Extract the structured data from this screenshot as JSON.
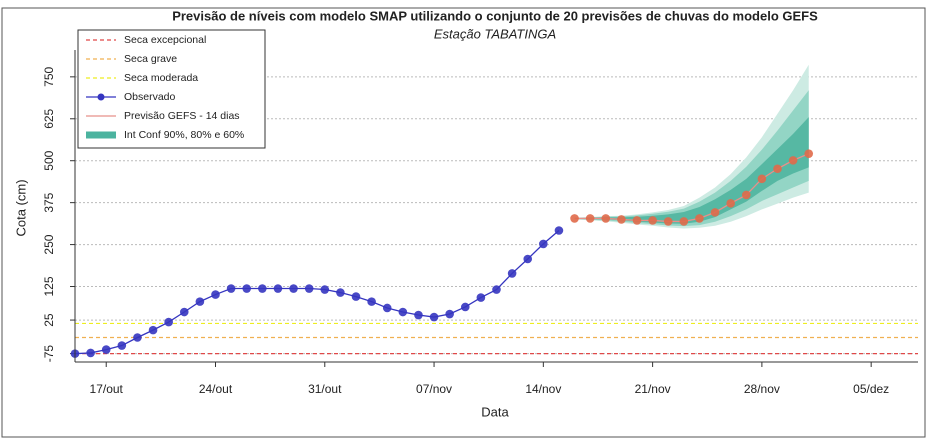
{
  "chart_data": {
    "type": "line",
    "title": "Previsão de níveis com modelo SMAP utilizando o conjunto de 20 previsões de chuvas do modelo GEFS",
    "subtitle": "Estação TABATINGA",
    "x_label": "Data",
    "y_label": "Cota (cm)",
    "categories": [
      null,
      null,
      "17/out",
      null,
      null,
      null,
      null,
      null,
      null,
      "24/out",
      null,
      null,
      null,
      null,
      null,
      null,
      "31/out",
      null,
      null,
      null,
      null,
      null,
      null,
      "07/nov",
      null,
      null,
      null,
      null,
      null,
      null,
      "14/nov",
      null,
      null,
      null,
      null,
      null,
      null,
      "21/nov",
      null,
      null,
      null,
      null,
      null,
      null,
      "28/nov",
      null,
      null,
      null,
      null,
      null,
      null,
      "05/dez",
      null,
      null
    ],
    "ylim": [
      -100,
      830
    ],
    "yticks": [
      -75,
      25,
      125,
      250,
      375,
      500,
      625,
      750
    ],
    "grid": true,
    "legend": "upper left",
    "hlines": [
      {
        "name": "Seca excepcional",
        "value": -75,
        "color": "#e04848"
      },
      {
        "name": "Seca grave",
        "value": -27,
        "color": "#f0b050"
      },
      {
        "name": "Seca moderada",
        "value": 15,
        "color": "#eeee20"
      }
    ],
    "series": [
      {
        "name": "Observado",
        "color": "#3535c0",
        "marker_color": "#3535c0",
        "values": [
          -75,
          -73,
          -63,
          -51,
          -27,
          -5,
          19,
          49,
          80,
          101,
          119,
          119,
          119,
          119,
          119,
          119,
          116,
          107,
          95,
          80,
          61,
          49,
          40,
          34,
          43,
          64,
          92,
          116,
          164,
          207,
          252,
          292,
          null,
          null,
          null,
          null,
          null,
          null,
          null,
          null,
          null,
          null,
          null,
          null,
          null,
          null,
          null,
          null,
          null,
          null,
          null,
          null,
          null,
          null
        ]
      },
      {
        "name": "Previsão GEFS - 14 dias",
        "color": "#e8908a",
        "marker_color": "#e06a4a",
        "values": [
          null,
          null,
          null,
          null,
          null,
          null,
          null,
          null,
          null,
          null,
          null,
          null,
          null,
          null,
          null,
          null,
          null,
          null,
          null,
          null,
          null,
          null,
          null,
          null,
          null,
          null,
          null,
          null,
          null,
          null,
          null,
          null,
          328,
          328,
          328,
          325,
          322,
          322,
          319,
          319,
          328,
          346,
          373,
          398,
          446,
          476,
          501,
          521,
          null,
          null,
          null,
          null,
          null,
          null
        ]
      }
    ],
    "band": {
      "name": "Int Conf 90%, 80% e 60%",
      "color": "#4bb39f",
      "levels": [
        {
          "color": "#cdebe3",
          "upper": [
            null,
            null,
            null,
            null,
            null,
            null,
            null,
            null,
            null,
            null,
            null,
            null,
            null,
            null,
            null,
            null,
            null,
            null,
            null,
            null,
            null,
            null,
            null,
            null,
            null,
            null,
            null,
            null,
            null,
            null,
            null,
            null,
            330,
            332,
            335,
            336,
            340,
            346,
            353,
            365,
            390,
            420,
            460,
            510,
            570,
            640,
            710,
            786,
            null,
            null,
            null,
            null,
            null,
            null
          ],
          "lower": [
            null,
            null,
            null,
            null,
            null,
            null,
            null,
            null,
            null,
            null,
            null,
            null,
            null,
            null,
            null,
            null,
            null,
            null,
            null,
            null,
            null,
            null,
            null,
            null,
            null,
            null,
            null,
            null,
            null,
            null,
            null,
            null,
            325,
            322,
            319,
            315,
            310,
            306,
            301,
            298,
            300,
            306,
            318,
            335,
            355,
            372,
            390,
            405,
            null,
            null,
            null,
            null,
            null,
            null
          ]
        },
        {
          "color": "#93d5c5",
          "upper": [
            null,
            null,
            null,
            null,
            null,
            null,
            null,
            null,
            null,
            null,
            null,
            null,
            null,
            null,
            null,
            null,
            null,
            null,
            null,
            null,
            null,
            null,
            null,
            null,
            null,
            null,
            null,
            null,
            null,
            null,
            null,
            null,
            330,
            331,
            333,
            334,
            337,
            342,
            348,
            357,
            378,
            405,
            440,
            482,
            533,
            590,
            650,
            710,
            null,
            null,
            null,
            null,
            null,
            null
          ],
          "lower": [
            null,
            null,
            null,
            null,
            null,
            null,
            null,
            null,
            null,
            null,
            null,
            null,
            null,
            null,
            null,
            null,
            null,
            null,
            null,
            null,
            null,
            null,
            null,
            null,
            null,
            null,
            null,
            null,
            null,
            null,
            null,
            null,
            326,
            324,
            322,
            318,
            314,
            311,
            307,
            305,
            308,
            318,
            335,
            355,
            380,
            400,
            420,
            440,
            null,
            null,
            null,
            null,
            null,
            null
          ]
        },
        {
          "color": "#56b8a3",
          "upper": [
            null,
            null,
            null,
            null,
            null,
            null,
            null,
            null,
            null,
            null,
            null,
            null,
            null,
            null,
            null,
            null,
            null,
            null,
            null,
            null,
            null,
            null,
            null,
            null,
            null,
            null,
            null,
            null,
            null,
            null,
            null,
            null,
            329,
            330,
            331,
            331,
            333,
            336,
            340,
            347,
            362,
            385,
            413,
            446,
            490,
            535,
            580,
            630,
            null,
            null,
            null,
            null,
            null,
            null
          ],
          "lower": [
            null,
            null,
            null,
            null,
            null,
            null,
            null,
            null,
            null,
            null,
            null,
            null,
            null,
            null,
            null,
            null,
            null,
            null,
            null,
            null,
            null,
            null,
            null,
            null,
            null,
            null,
            null,
            null,
            null,
            null,
            null,
            null,
            327,
            326,
            325,
            322,
            318,
            316,
            313,
            312,
            318,
            332,
            355,
            378,
            410,
            440,
            462,
            480,
            null,
            null,
            null,
            null,
            null,
            null
          ]
        }
      ]
    }
  }
}
